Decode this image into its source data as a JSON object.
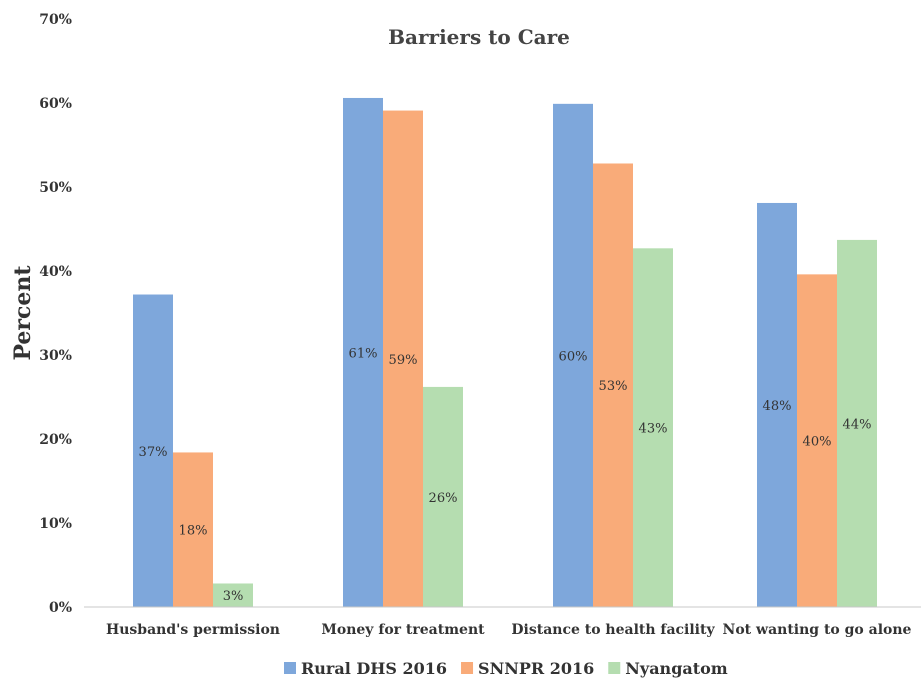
{
  "chart_data": {
    "type": "bar",
    "title": "Barriers to Care",
    "ylabel": "Percent",
    "xlabel": "",
    "ylim": [
      0,
      70
    ],
    "yticks": [
      "0%",
      "10%",
      "20%",
      "30%",
      "40%",
      "50%",
      "60%",
      "70%"
    ],
    "grid": false,
    "legend_position": "bottom",
    "categories": [
      "Husband's permission",
      "Money for treatment",
      "Distance to health facility",
      "Not wanting to go alone"
    ],
    "series": [
      {
        "name": "Rural DHS 2016",
        "color": "#7ea7db",
        "values": [
          37.2,
          60.6,
          59.9,
          48.1
        ],
        "labels": [
          "37%",
          "61%",
          "60%",
          "48%"
        ]
      },
      {
        "name": "SNNPR 2016",
        "color": "#f9ab79",
        "values": [
          18.4,
          59.1,
          52.8,
          39.6
        ],
        "labels": [
          "18%",
          "59%",
          "53%",
          "40%"
        ]
      },
      {
        "name": "Nyangatom",
        "color": "#b5ddb0",
        "values": [
          2.8,
          26.2,
          42.7,
          43.7
        ],
        "labels": [
          "3%",
          "26%",
          "43%",
          "44%"
        ]
      }
    ]
  }
}
